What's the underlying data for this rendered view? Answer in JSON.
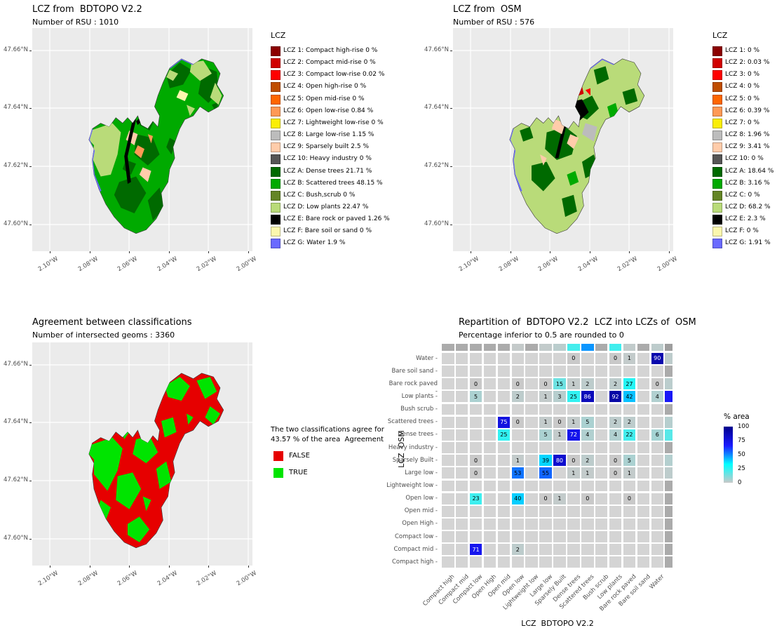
{
  "colors": {
    "panel_bg": "#EBEBEB",
    "grid_line": "#FFFFFF",
    "axis_text": "#4D4D4D",
    "lcz": {
      "1": "#8C0000",
      "2": "#D10000",
      "3": "#FF0000",
      "4": "#BF4D00",
      "5": "#FF6600",
      "6": "#FF9955",
      "7": "#FAEE05",
      "8": "#BCBCBC",
      "9": "#FFCCAA",
      "10": "#555555",
      "A": "#006A00",
      "B": "#00AA00",
      "C": "#648525",
      "D": "#B9DB79",
      "E": "#000000",
      "F": "#FBF7AE",
      "G": "#6A6AFF"
    },
    "agreement_false": "#E60000",
    "agreement_true": "#00E400",
    "heat_scale_stops": [
      [
        0,
        "#C9C9C9"
      ],
      [
        33,
        "#00FFFF"
      ],
      [
        66,
        "#1A1AFF"
      ],
      [
        100,
        "#00008B"
      ]
    ],
    "heat_empty": "#D4D4D4",
    "heat_margin_empty": "#ABABAB",
    "heat_corner": "#9E9E9E"
  },
  "map_axes": {
    "x_ticks": [
      "2.10°W",
      "2.08°W",
      "2.06°W",
      "2.04°W",
      "2.02°W",
      "2.00°W"
    ],
    "y_ticks": [
      "47.66°N",
      "47.64°N",
      "47.62°N",
      "47.60°N"
    ]
  },
  "bdtopo": {
    "title": "LCZ from  BDTOPO V2.2",
    "subtitle": "Number of RSU : 1010",
    "legend_title": "LCZ"
  },
  "osm": {
    "title": "LCZ from  OSM",
    "subtitle": "Number of RSU : 576",
    "legend_title": "LCZ"
  },
  "agreement": {
    "title": "Agreement between classifications",
    "subtitle": "Number of intersected geoms : 3360",
    "legend_lines": [
      "The two classifications agree for",
      "43.57 % of the area  Agreement"
    ],
    "items": [
      {
        "label": "FALSE"
      },
      {
        "label": "TRUE"
      }
    ]
  },
  "repartition": {
    "title": "Repartition of  BDTOPO V2.2  LCZ into LCZs of  OSM",
    "subtitle": "Percentage inferior to 0.5 are rounded to 0",
    "xlabel": "LCZ  BDTOPO V2.2",
    "ylabel": "LCZ  OSM",
    "legend_title": "% area"
  },
  "chart_data": [
    {
      "type": "map",
      "name": "lcz_from_bdtopo_v2_2",
      "title": "LCZ from BDTOPO V2.2",
      "subtitle": "Number of RSU : 1010",
      "number_of_rsu": 1010,
      "legend_title": "LCZ",
      "x_axis_ticks": [
        "2.10°W",
        "2.08°W",
        "2.06°W",
        "2.04°W",
        "2.02°W",
        "2.00°W"
      ],
      "y_axis_ticks": [
        "47.60°N",
        "47.62°N",
        "47.64°N",
        "47.66°N"
      ],
      "classes": [
        {
          "code": "LCZ 1",
          "name": "Compact high-rise",
          "pct": 0
        },
        {
          "code": "LCZ 2",
          "name": "Compact mid-rise",
          "pct": 0
        },
        {
          "code": "LCZ 3",
          "name": "Compact low-rise",
          "pct": 0.02
        },
        {
          "code": "LCZ 4",
          "name": "Open high-rise",
          "pct": 0
        },
        {
          "code": "LCZ 5",
          "name": "Open mid-rise",
          "pct": 0
        },
        {
          "code": "LCZ 6",
          "name": "Open low-rise",
          "pct": 0.84
        },
        {
          "code": "LCZ 7",
          "name": "Lightweight low-rise",
          "pct": 0
        },
        {
          "code": "LCZ 8",
          "name": "Large low-rise",
          "pct": 1.15
        },
        {
          "code": "LCZ 9",
          "name": "Sparsely built",
          "pct": 2.5
        },
        {
          "code": "LCZ 10",
          "name": "Heavy industry",
          "pct": 0
        },
        {
          "code": "LCZ A",
          "name": "Dense trees",
          "pct": 21.71
        },
        {
          "code": "LCZ B",
          "name": "Scattered trees",
          "pct": 48.15
        },
        {
          "code": "LCZ C",
          "name": "Bush,scrub",
          "pct": 0
        },
        {
          "code": "LCZ D",
          "name": "Low plants",
          "pct": 22.47
        },
        {
          "code": "LCZ E",
          "name": "Bare rock or paved",
          "pct": 1.26
        },
        {
          "code": "LCZ F",
          "name": "Bare soil or sand",
          "pct": 0
        },
        {
          "code": "LCZ G",
          "name": "Water",
          "pct": 1.9
        }
      ]
    },
    {
      "type": "map",
      "name": "lcz_from_osm",
      "title": "LCZ from OSM",
      "subtitle": "Number of RSU : 576",
      "number_of_rsu": 576,
      "legend_title": "LCZ",
      "x_axis_ticks": [
        "2.10°W",
        "2.08°W",
        "2.06°W",
        "2.04°W",
        "2.02°W",
        "2.00°W"
      ],
      "y_axis_ticks": [
        "47.60°N",
        "47.62°N",
        "47.64°N",
        "47.66°N"
      ],
      "classes": [
        {
          "code": "LCZ 1",
          "pct": 0
        },
        {
          "code": "LCZ 2",
          "pct": 0.03
        },
        {
          "code": "LCZ 3",
          "pct": 0
        },
        {
          "code": "LCZ 4",
          "pct": 0
        },
        {
          "code": "LCZ 5",
          "pct": 0
        },
        {
          "code": "LCZ 6",
          "pct": 0.39
        },
        {
          "code": "LCZ 7",
          "pct": 0
        },
        {
          "code": "LCZ 8",
          "pct": 1.96
        },
        {
          "code": "LCZ 9",
          "pct": 3.41
        },
        {
          "code": "LCZ 10",
          "pct": 0
        },
        {
          "code": "LCZ A",
          "pct": 18.64
        },
        {
          "code": "LCZ B",
          "pct": 3.16
        },
        {
          "code": "LCZ C",
          "pct": 0
        },
        {
          "code": "LCZ D",
          "pct": 68.2
        },
        {
          "code": "LCZ E",
          "pct": 2.3
        },
        {
          "code": "LCZ F",
          "pct": 0
        },
        {
          "code": "LCZ G",
          "pct": 1.91
        }
      ]
    },
    {
      "type": "map",
      "name": "agreement_between_classifications",
      "title": "Agreement between classifications",
      "subtitle": "Number of intersected geoms : 3360",
      "number_of_intersected_geoms": 3360,
      "agreement_pct": 43.57,
      "categories": [
        "FALSE",
        "TRUE"
      ],
      "x_axis_ticks": [
        "2.10°W",
        "2.08°W",
        "2.06°W",
        "2.04°W",
        "2.02°W",
        "2.00°W"
      ],
      "y_axis_ticks": [
        "47.60°N",
        "47.62°N",
        "47.64°N",
        "47.66°N"
      ]
    },
    {
      "type": "heatmap",
      "title": "Repartition of BDTOPO V2.2 LCZ into LCZs of OSM",
      "subtitle": "Percentage inferior to 0.5 are rounded to 0",
      "xlabel": "LCZ BDTOPO V2.2",
      "ylabel": "LCZ OSM",
      "legend_title": "% area",
      "legend_ticks": [
        100,
        75,
        50,
        25,
        0
      ],
      "values_unit": "% of each BDTOPO column classified into OSM row",
      "x_categories": [
        "Compact high",
        "Compact mid",
        "Compact low",
        "Open High",
        "Open mid",
        "Open low",
        "Lightweight low",
        "Large low",
        "Sparsely Built",
        "Dense trees",
        "Scattered trees",
        "Bush scrub",
        "Low plants",
        "Bare rock paved",
        "Bare soil sand",
        "Water"
      ],
      "y_categories": [
        "Water",
        "Bare soil sand",
        "Bare rock paved",
        "Low plants",
        "Bush scrub",
        "Scattered trees",
        "Dense trees",
        "Heavy industry",
        "Sparsely Built",
        "Large low",
        "Lightweight low",
        "Open low",
        "Open mid",
        "Open High",
        "Compact low",
        "Compact mid",
        "Compact high"
      ],
      "values": [
        [
          null,
          null,
          null,
          null,
          null,
          null,
          null,
          null,
          null,
          0,
          null,
          null,
          0,
          1,
          null,
          90
        ],
        [
          null,
          null,
          null,
          null,
          null,
          null,
          null,
          null,
          null,
          null,
          null,
          null,
          null,
          null,
          null,
          null
        ],
        [
          null,
          null,
          0,
          null,
          null,
          0,
          null,
          0,
          15,
          1,
          2,
          null,
          2,
          27,
          null,
          0
        ],
        [
          null,
          null,
          5,
          null,
          null,
          2,
          null,
          1,
          3,
          25,
          86,
          null,
          92,
          42,
          null,
          4
        ],
        [
          null,
          null,
          null,
          null,
          null,
          null,
          null,
          null,
          null,
          null,
          null,
          null,
          null,
          null,
          null,
          null
        ],
        [
          null,
          null,
          null,
          null,
          75,
          0,
          null,
          1,
          0,
          1,
          5,
          null,
          2,
          2,
          null,
          null
        ],
        [
          null,
          null,
          null,
          null,
          25,
          null,
          null,
          5,
          1,
          72,
          4,
          null,
          4,
          22,
          null,
          6
        ],
        [
          null,
          null,
          null,
          null,
          null,
          null,
          null,
          null,
          null,
          null,
          null,
          null,
          null,
          null,
          null,
          null
        ],
        [
          null,
          null,
          0,
          null,
          null,
          1,
          null,
          39,
          80,
          0,
          2,
          null,
          0,
          5,
          null,
          null
        ],
        [
          null,
          null,
          0,
          null,
          null,
          53,
          null,
          55,
          null,
          1,
          1,
          null,
          0,
          1,
          null,
          null
        ],
        [
          null,
          null,
          null,
          null,
          null,
          null,
          null,
          null,
          null,
          null,
          null,
          null,
          null,
          null,
          null,
          null
        ],
        [
          null,
          null,
          23,
          null,
          null,
          40,
          null,
          0,
          1,
          null,
          0,
          null,
          null,
          0,
          null,
          null
        ],
        [
          null,
          null,
          null,
          null,
          null,
          null,
          null,
          null,
          null,
          null,
          null,
          null,
          null,
          null,
          null,
          null
        ],
        [
          null,
          null,
          null,
          null,
          null,
          null,
          null,
          null,
          null,
          null,
          null,
          null,
          null,
          null,
          null,
          null
        ],
        [
          null,
          null,
          null,
          null,
          null,
          null,
          null,
          null,
          null,
          null,
          null,
          null,
          null,
          null,
          null,
          null
        ],
        [
          null,
          null,
          71,
          null,
          null,
          2,
          null,
          null,
          null,
          null,
          null,
          null,
          null,
          null,
          null,
          null
        ],
        [
          null,
          null,
          null,
          null,
          null,
          null,
          null,
          null,
          null,
          null,
          null,
          null,
          null,
          null,
          null,
          null
        ]
      ],
      "bdtopo_column_totals_pct": [
        0,
        0,
        0.02,
        0,
        0,
        0.84,
        0,
        1.15,
        2.5,
        21.71,
        48.15,
        0,
        22.47,
        1.26,
        0,
        1.9
      ],
      "osm_row_totals_pct": [
        1.91,
        0,
        2.3,
        68.2,
        0,
        3.16,
        18.64,
        0,
        3.41,
        1.96,
        0,
        0.39,
        0,
        0,
        0,
        0.03,
        0
      ]
    }
  ]
}
